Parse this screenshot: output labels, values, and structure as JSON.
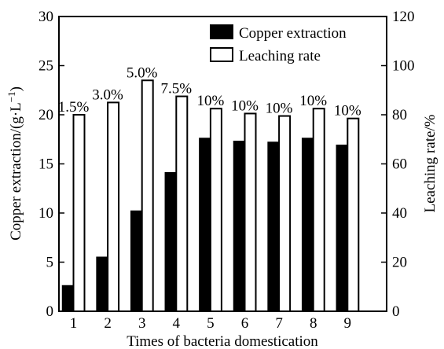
{
  "chart_data": {
    "type": "bar",
    "xlabel": "Times of bacteria domestication",
    "ylabel_left": "Copper extraction/(g·L",
    "ylabel_left_sup": "−1",
    "ylabel_left_end": ")",
    "ylabel_right": "Leaching rate/%",
    "categories": [
      "1",
      "2",
      "3",
      "4",
      "5",
      "6",
      "7",
      "8",
      "9"
    ],
    "left_ylim": [
      0,
      30
    ],
    "left_ticks": [
      "0",
      "5",
      "10",
      "15",
      "20",
      "25",
      "30"
    ],
    "right_ylim": [
      0,
      120
    ],
    "right_ticks": [
      "0",
      "20",
      "40",
      "60",
      "80",
      "100",
      "120"
    ],
    "series": [
      {
        "name": "Copper extraction",
        "axis": "left",
        "fill": "#000000",
        "values": [
          2.6,
          5.5,
          10.2,
          14.1,
          17.6,
          17.3,
          17.2,
          17.6,
          16.9
        ]
      },
      {
        "name": "Leaching rate",
        "axis": "right",
        "fill": "#ffffff",
        "values": [
          80,
          85,
          94,
          87.5,
          82.5,
          80.5,
          79.5,
          82.5,
          78.5
        ]
      }
    ],
    "bar_labels": [
      "1.5%",
      "3.0%",
      "5.0%",
      "7.5%",
      "10%",
      "10%",
      "10%",
      "10%",
      "10%"
    ],
    "legend_position": "top-right",
    "grid": false
  }
}
